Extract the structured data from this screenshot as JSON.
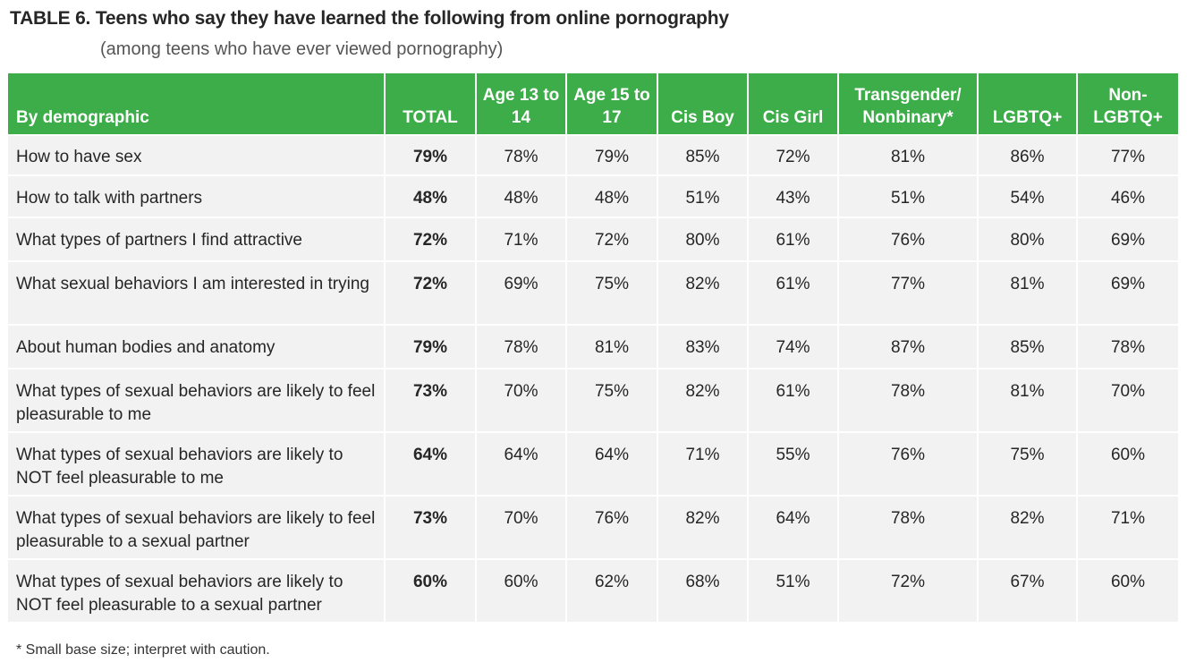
{
  "title": "TABLE 6. Teens who say they have learned the following from online pornography",
  "subtitle": "(among teens who have ever viewed pornography)",
  "footnote": "* Small base size; interpret with caution.",
  "colors": {
    "header_bg": "#3cad49",
    "cell_bg": "#f2f2f2"
  },
  "chart_data": {
    "type": "table",
    "columns": [
      "By demographic",
      "TOTAL",
      "Age 13 to 14",
      "Age 15 to 17",
      "Cis Boy",
      "Cis Girl",
      "Transgender/ Nonbinary*",
      "LGBTQ+",
      "Non- LGBTQ+"
    ],
    "rows": [
      {
        "label": "How to have sex",
        "values": [
          "79%",
          "78%",
          "79%",
          "85%",
          "72%",
          "81%",
          "86%",
          "77%"
        ]
      },
      {
        "label": "How to talk with partners",
        "values": [
          "48%",
          "48%",
          "48%",
          "51%",
          "43%",
          "51%",
          "54%",
          "46%"
        ]
      },
      {
        "label": "What types of partners I find attractive",
        "values": [
          "72%",
          "71%",
          "72%",
          "80%",
          "61%",
          "76%",
          "80%",
          "69%"
        ]
      },
      {
        "label": "What sexual behaviors I am interested in trying",
        "values": [
          "72%",
          "69%",
          "75%",
          "82%",
          "61%",
          "77%",
          "81%",
          "69%"
        ]
      },
      {
        "label": "About human bodies and anatomy",
        "values": [
          "79%",
          "78%",
          "81%",
          "83%",
          "74%",
          "87%",
          "85%",
          "78%"
        ]
      },
      {
        "label": "What types of sexual behaviors are likely to feel pleasurable to me",
        "values": [
          "73%",
          "70%",
          "75%",
          "82%",
          "61%",
          "78%",
          "81%",
          "70%"
        ]
      },
      {
        "label": "What types of sexual behaviors are likely to NOT feel pleasurable to me",
        "values": [
          "64%",
          "64%",
          "64%",
          "71%",
          "55%",
          "76%",
          "75%",
          "60%"
        ]
      },
      {
        "label": "What types of sexual behaviors are likely to feel pleasurable to a sexual partner",
        "values": [
          "73%",
          "70%",
          "76%",
          "82%",
          "64%",
          "78%",
          "82%",
          "71%"
        ]
      },
      {
        "label": "What types of sexual behaviors are likely to NOT feel pleasurable to a sexual partner",
        "values": [
          "60%",
          "60%",
          "62%",
          "68%",
          "51%",
          "72%",
          "67%",
          "60%"
        ]
      }
    ]
  }
}
